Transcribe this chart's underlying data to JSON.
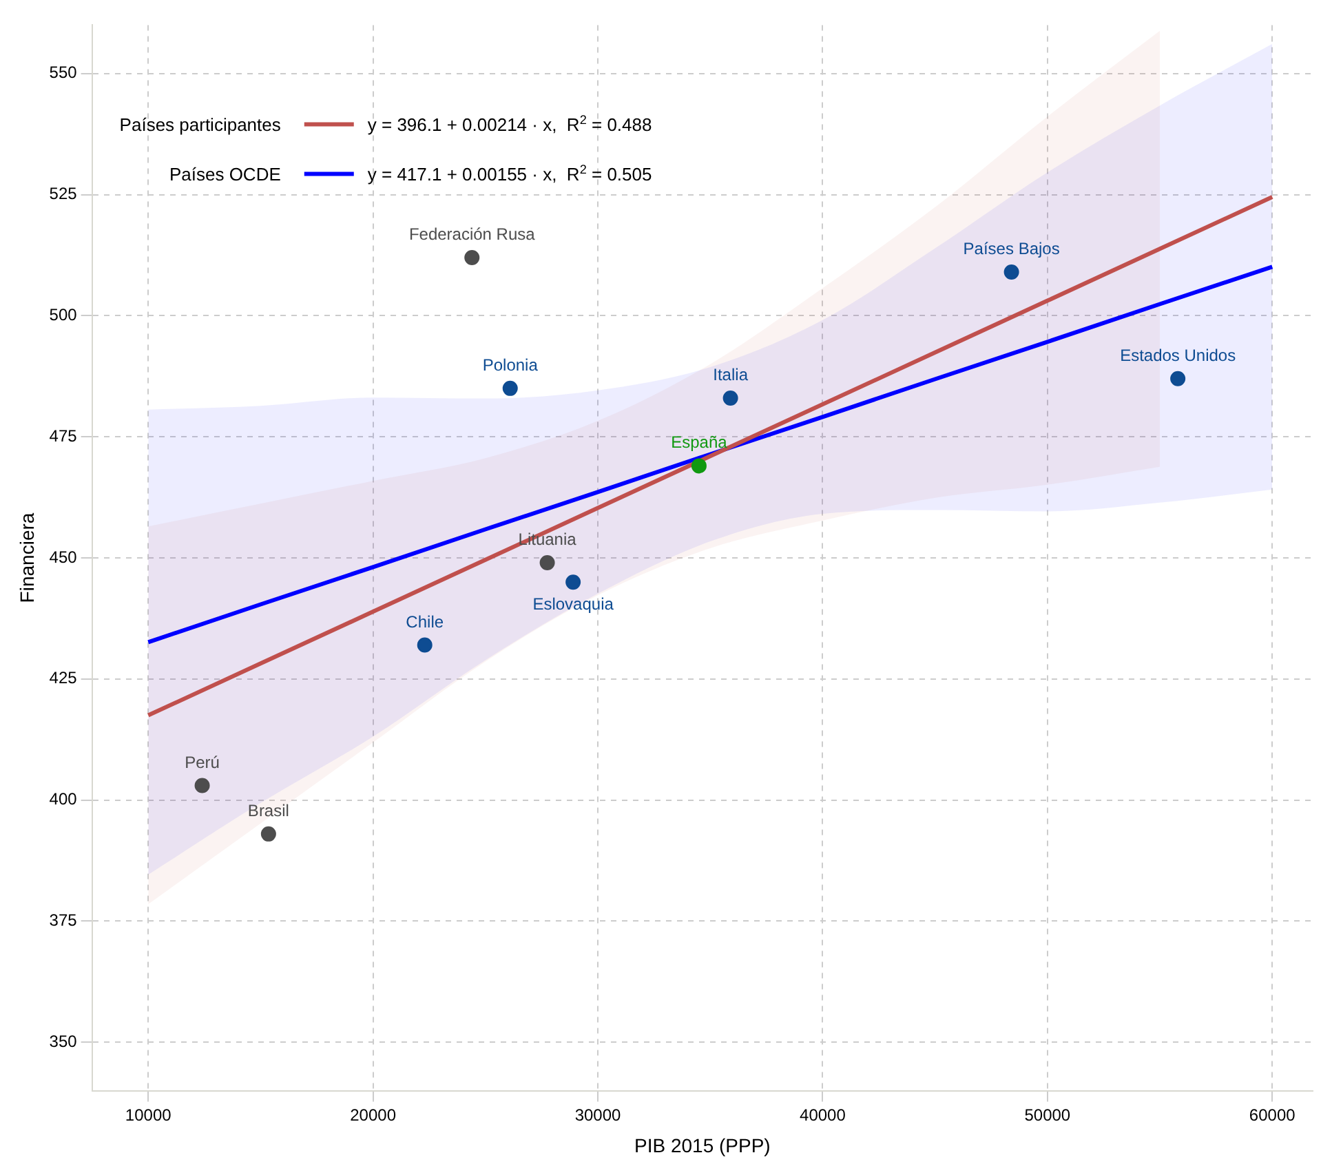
{
  "chart_data": {
    "type": "scatter",
    "xlabel": "PIB 2015 (PPP)",
    "ylabel": "Financiera",
    "xlim": [
      7500,
      61800
    ],
    "ylim": [
      340,
      560
    ],
    "xticks": [
      10000,
      20000,
      30000,
      40000,
      50000,
      60000
    ],
    "yticks": [
      350,
      375,
      400,
      425,
      450,
      475,
      500,
      525,
      550
    ],
    "grid": true,
    "legend": "top left",
    "line_style": "solid",
    "series": [
      {
        "name": "Países participantes",
        "type": "line",
        "color": "#c0504d",
        "x": [
          10000,
          15000,
          20000,
          25000,
          30000,
          35000,
          40000,
          45000,
          50000,
          55000,
          60000
        ],
        "values": [
          417.5,
          428.2,
          438.9,
          449.6,
          460.3,
          471.0,
          481.7,
          492.4,
          503.1,
          513.8,
          524.5
        ],
        "lower": [
          378.5,
          395.2,
          411.9,
          428.6,
          442.3,
          452,
          457.7,
          462.4,
          465.1,
          468.8,
          null
        ],
        "upper": [
          456.5,
          461.2,
          465.9,
          470.6,
          478.3,
          490,
          505.7,
          522.4,
          541.1,
          558.8,
          null
        ]
      },
      {
        "name": "Países OCDE",
        "type": "line",
        "color": "#0000ff",
        "x": [
          10000,
          15000,
          20000,
          25000,
          30000,
          35000,
          40000,
          45000,
          50000,
          55000,
          60000
        ],
        "values": [
          432.6,
          440.4,
          448.1,
          455.9,
          463.6,
          471.4,
          479.1,
          486.9,
          494.6,
          502.4,
          510.1
        ],
        "lower": [
          384.6,
          399.4,
          413.1,
          428.9,
          442.6,
          453.4,
          459.1,
          459.9,
          459.6,
          461.4,
          464.1
        ],
        "upper": [
          480.6,
          481.4,
          483.1,
          482.9,
          484.6,
          489.4,
          499.1,
          513.9,
          529.6,
          543.4,
          556.1
        ]
      },
      {
        "type": "scatter",
        "marker": "circle",
        "color": "#4d4d4d",
        "x": [
          24400,
          27750,
          12400,
          15350
        ],
        "values": [
          512,
          449,
          403,
          393
        ]
      },
      {
        "type": "scatter",
        "marker": "circle",
        "color": "#0e4c92",
        "x": [
          26100,
          35900,
          48400,
          55800,
          22300,
          28900
        ],
        "values": [
          485,
          483,
          509,
          487,
          432,
          445
        ]
      },
      {
        "type": "scatter",
        "marker": "circle",
        "color": "#119911",
        "x": [
          34500
        ],
        "values": [
          469
        ]
      }
    ],
    "annotations": [
      "y = 396.1 + 0.00214 · x,  R$^{2}$ = 0.488",
      "y = 417.1 + 0.00155 · x,  R$^{2}$ = 0.505",
      {
        "text": "Federación Rusa",
        "x": 24400,
        "y": 512
      },
      {
        "text": "Lituania",
        "x": 27750,
        "y": 449
      },
      {
        "text": "Perú",
        "x": 12400,
        "y": 403
      },
      {
        "text": "Brasil",
        "x": 15350,
        "y": 393
      },
      {
        "text": "Polonia",
        "x": 26100,
        "y": 485
      },
      {
        "text": "Italia",
        "x": 35900,
        "y": 483
      },
      {
        "text": "Países Bajos",
        "x": 48400,
        "y": 509
      },
      {
        "text": "Estados Unidos",
        "x": 55800,
        "y": 487
      },
      {
        "text": "Chile",
        "x": 22300,
        "y": 432
      },
      {
        "text": "Eslovaquia",
        "x": 28900,
        "y": 445
      },
      {
        "text": "España",
        "x": 34500,
        "y": 469
      }
    ]
  }
}
